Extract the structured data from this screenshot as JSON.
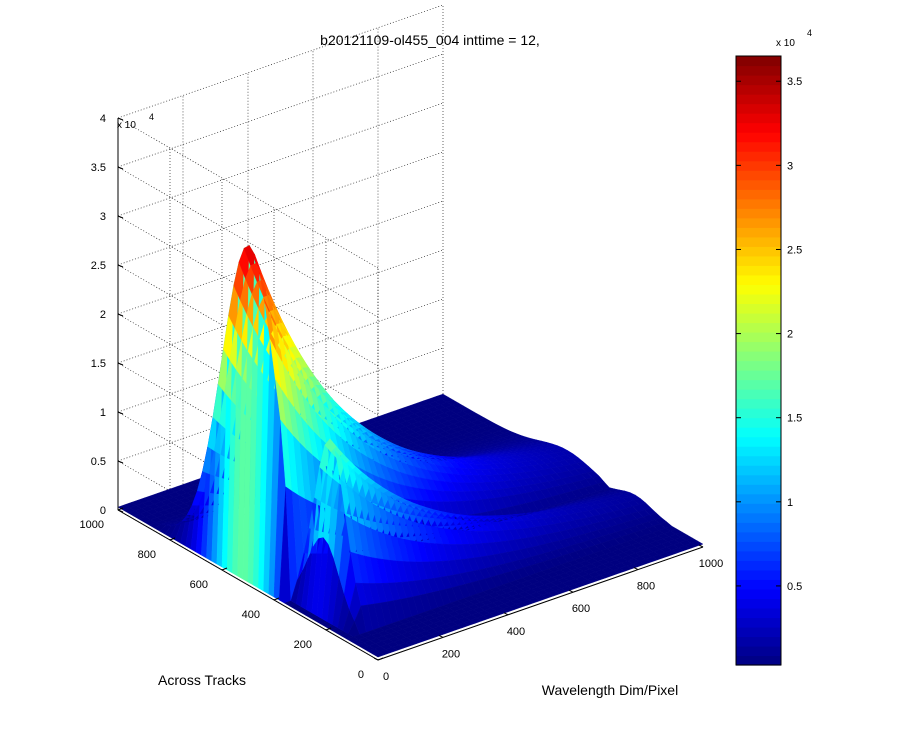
{
  "chart_data": {
    "type": "surface3d",
    "title": "b20121109-ol455_004 inttime = 12,",
    "xlabel": "Wavelength Dim/Pixel",
    "ylabel": "Across Tracks",
    "zlabel": "",
    "x_ticks": [
      "0",
      "200",
      "400",
      "600",
      "800",
      "1000"
    ],
    "y_ticks": [
      "0",
      "200",
      "400",
      "600",
      "800",
      "1000"
    ],
    "z_ticks": [
      "0",
      "0.5",
      "1",
      "1.5",
      "2",
      "2.5",
      "3",
      "3.5",
      "4"
    ],
    "z_exponent": {
      "base": "x 10",
      "power": "4"
    },
    "xlim": [
      0,
      1000
    ],
    "ylim": [
      0,
      1000
    ],
    "zlim": [
      0,
      40000
    ],
    "grid": true,
    "colormap": "jet",
    "colorbar": {
      "ticks": [
        "0.5",
        "1",
        "1.5",
        "2",
        "2.5",
        "3",
        "3.5"
      ],
      "tick_values": [
        5000,
        10000,
        15000,
        20000,
        25000,
        30000,
        35000
      ],
      "range": [
        300,
        36500
      ],
      "exponent": {
        "base": "x 10",
        "power": "4"
      }
    },
    "peaks": [
      {
        "x": 150,
        "y": 520,
        "z": 36000
      },
      {
        "x": 190,
        "y": 260,
        "z": 18000
      }
    ]
  }
}
